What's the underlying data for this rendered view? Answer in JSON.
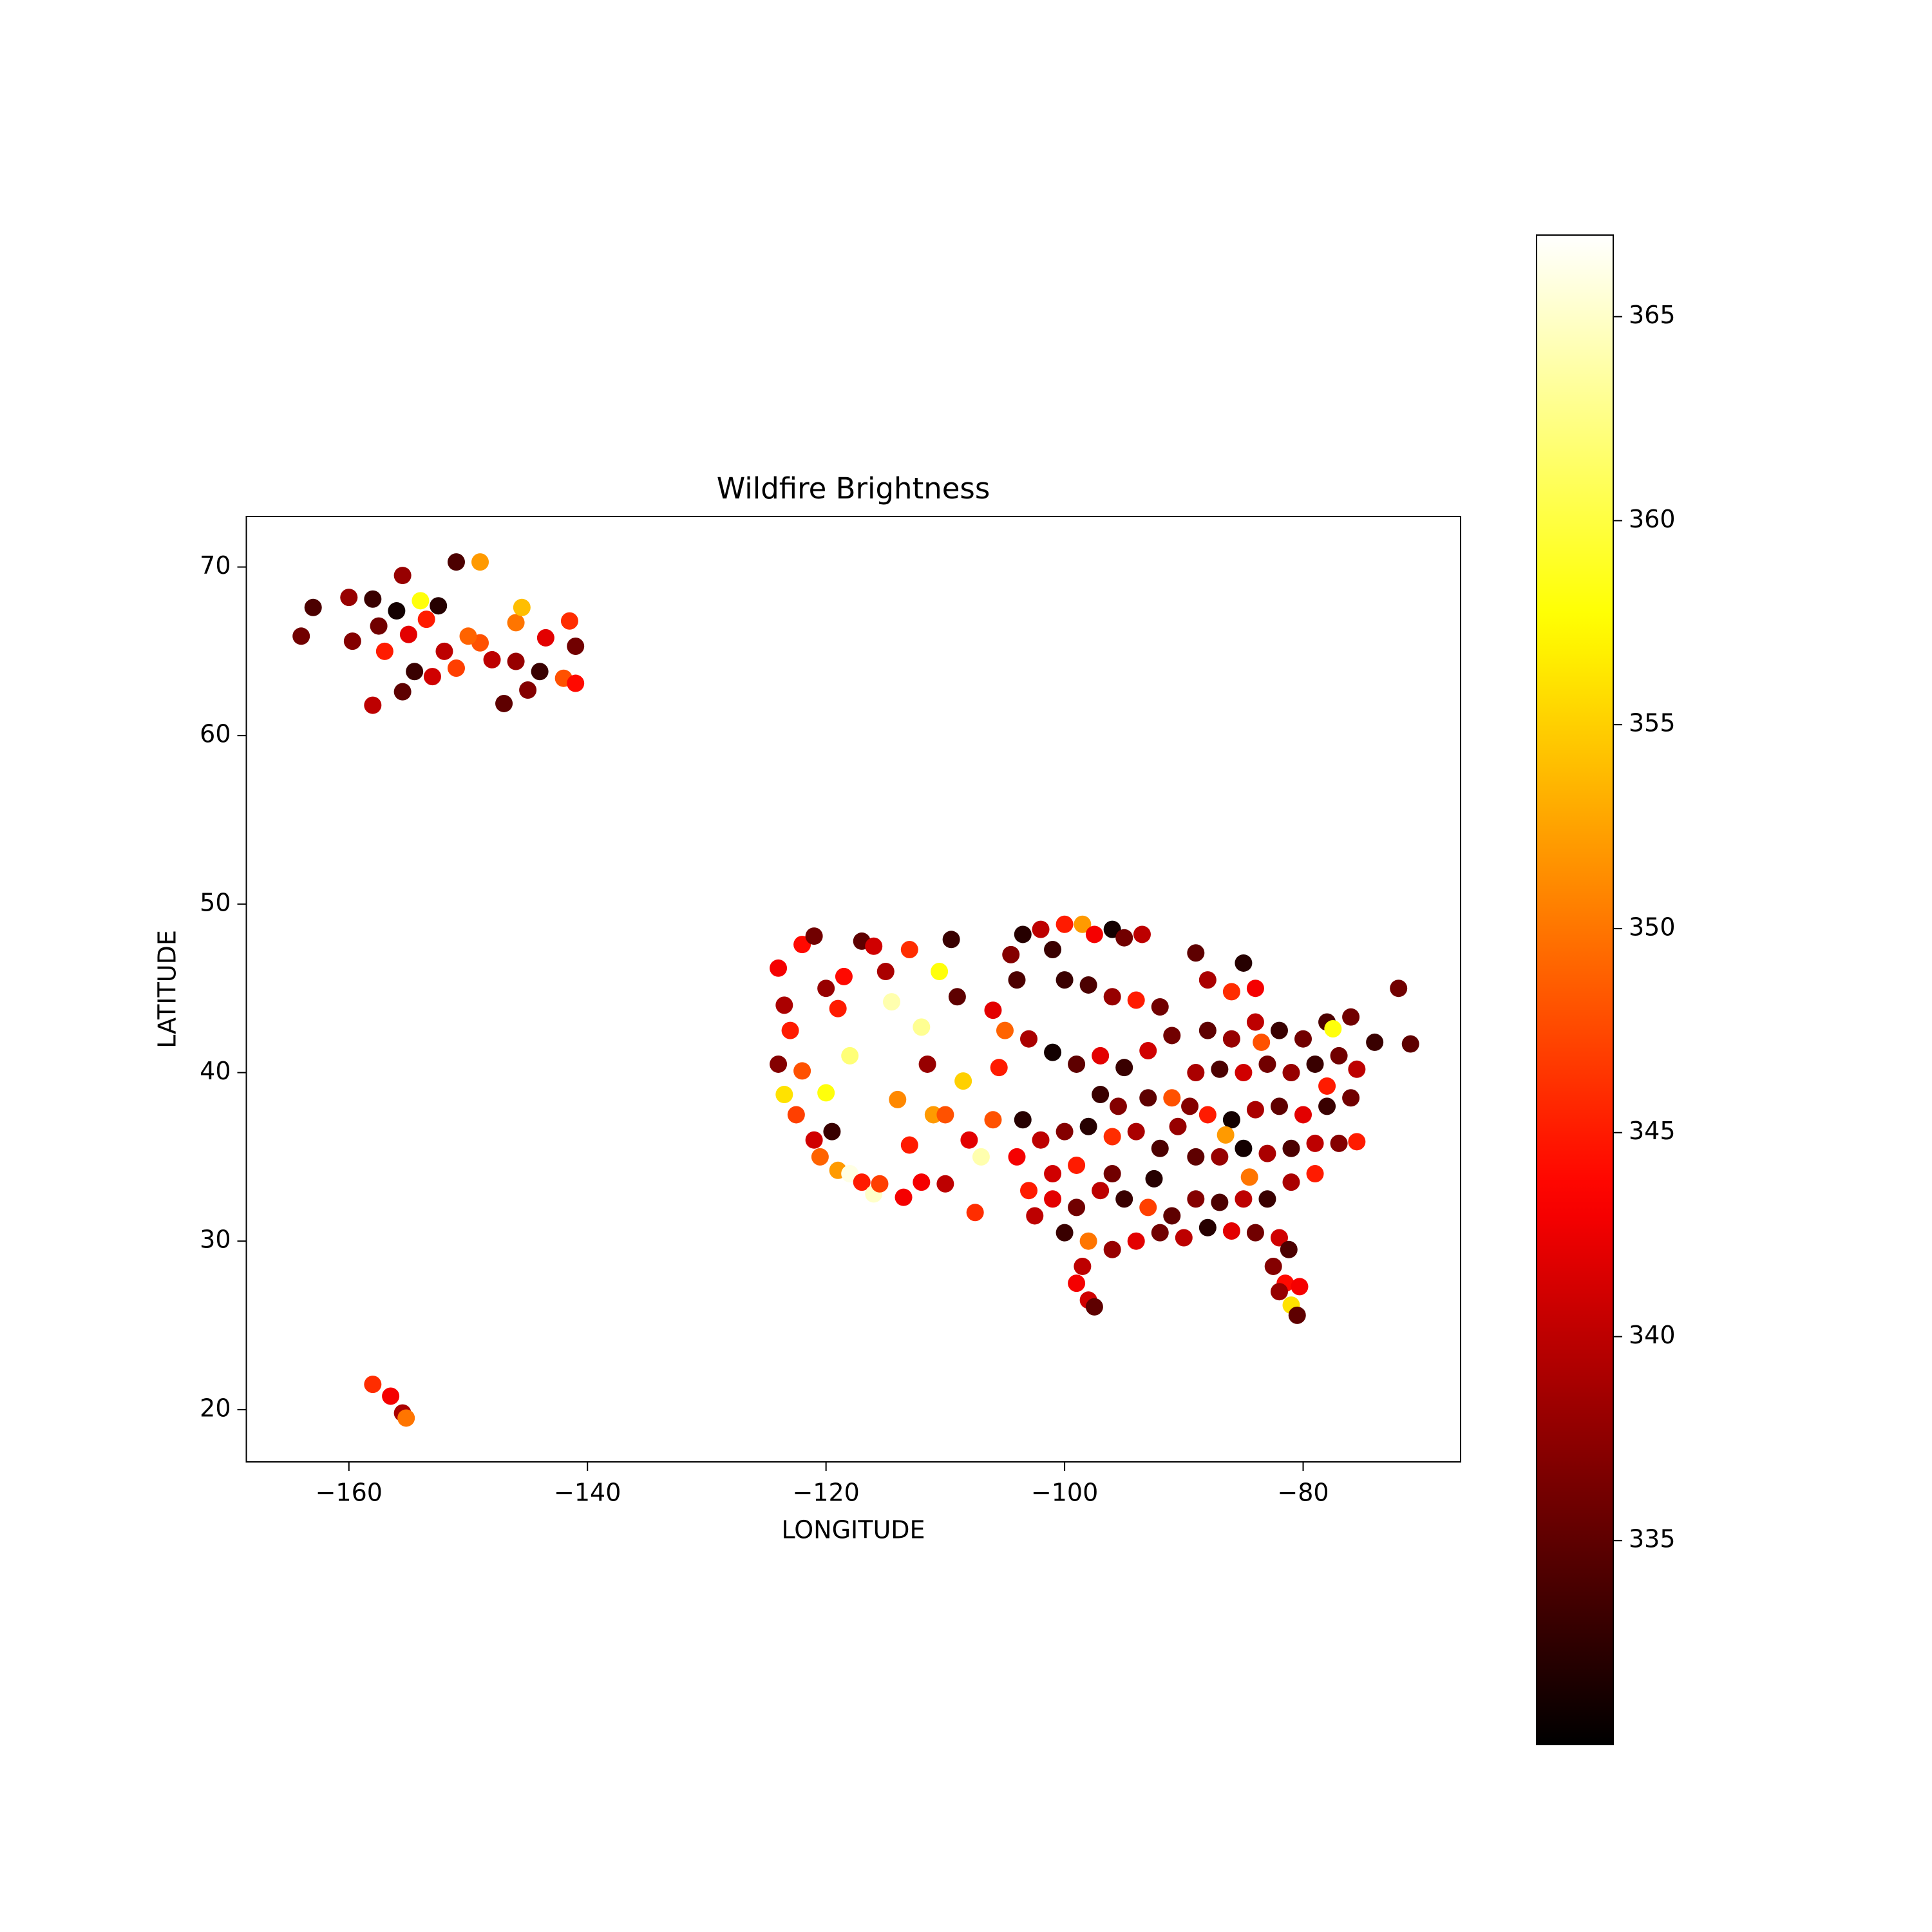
{
  "chart_data": {
    "type": "scatter",
    "title": "Wildfire Brightness",
    "x_label": "LONGITUDE",
    "y_label": "LATITUDE",
    "xlim": [
      -168.6,
      -66.8
    ],
    "ylim": [
      16.9,
      73.0
    ],
    "xticks": [
      {
        "value": -160,
        "label": "−160"
      },
      {
        "value": -140,
        "label": "−140"
      },
      {
        "value": -120,
        "label": "−120"
      },
      {
        "value": -100,
        "label": "−100"
      },
      {
        "value": -80,
        "label": "−80"
      }
    ],
    "yticks": [
      20,
      30,
      40,
      50,
      60,
      70
    ],
    "colormap": "hot",
    "clim": [
      330.0,
      367.0
    ],
    "cticks": [
      335,
      340,
      345,
      350,
      355,
      360,
      365
    ],
    "x": [
      -164,
      -163,
      -160,
      -159.7,
      -158,
      -158,
      -157.5,
      -157,
      -156,
      -155.5,
      -155.5,
      -155,
      -154.5,
      -154,
      -153.5,
      -152.5,
      -152,
      -151,
      -151,
      -149,
      -149,
      -148,
      -147,
      -146,
      -145.5,
      -145,
      -144,
      -143.5,
      -142,
      -141.5,
      -141,
      -141,
      -150,
      -146,
      -153,
      -158,
      -156.5,
      -155.5,
      -155.2,
      -124,
      -123.5,
      -123,
      -124,
      -123.5,
      -122.5,
      -121,
      -120.5,
      -119,
      -118,
      -117,
      -116,
      -122,
      -121,
      -120,
      -119,
      -118,
      -117.5,
      -117,
      -116,
      -115,
      -114.5,
      -114,
      -113,
      -112,
      -111.5,
      -111,
      -110.5,
      -110,
      -109.5,
      -109,
      -108.5,
      -108,
      -107.5,
      -107,
      -106,
      -105.5,
      -105,
      -104.5,
      -104,
      -120,
      -119.5,
      -115.5,
      -113.5,
      -122,
      -118.5,
      -112,
      -113,
      -110,
      -106,
      -103.5,
      -102,
      -101,
      -100,
      -98.5,
      -97.5,
      -96,
      -95,
      -93.5,
      -100,
      -98,
      -96,
      -94,
      -92,
      -103,
      -101,
      -99,
      -97,
      -95,
      -93,
      -91,
      -103.5,
      -102,
      -100,
      -98,
      -96,
      -94,
      -92,
      -90.5,
      -103,
      -101,
      -99,
      -97,
      -95,
      -93,
      -91,
      -100,
      -98,
      -96,
      -94,
      -92,
      -99,
      -98,
      -97.5,
      -98.5,
      -101,
      -95.5,
      -93,
      -91,
      -97,
      -99,
      -96,
      -92.5,
      -104,
      -102.5,
      -89,
      -88,
      -86,
      -84,
      -85,
      -88,
      -86,
      -84,
      -82,
      -80,
      -78,
      -76,
      -74,
      -72,
      -71,
      -89,
      -87,
      -85,
      -83,
      -81,
      -79,
      -77,
      -75.5,
      -89.5,
      -88,
      -86,
      -84,
      -82,
      -80,
      -78,
      -76,
      -89,
      -87,
      -85,
      -83,
      -81,
      -79,
      -77,
      -75.5,
      -89,
      -87,
      -85,
      -83,
      -81,
      -79,
      -88,
      -86,
      -84,
      -82,
      -82.5,
      -81.5,
      -81,
      -80.5,
      -81.2,
      -84.5,
      -86.5,
      -77.5,
      -78,
      -83.5,
      -90,
      -82,
      -80.3
    ],
    "y": [
      65.9,
      67.6,
      68.2,
      65.6,
      68.1,
      61.8,
      66.5,
      65,
      67.4,
      69.5,
      62.6,
      66,
      63.8,
      68,
      66.9,
      67.7,
      65,
      70.3,
      64,
      70.3,
      65.5,
      64.5,
      61.9,
      66.7,
      67.6,
      62.7,
      63.8,
      65.8,
      63.4,
      66.8,
      65.3,
      63.1,
      65.9,
      64.4,
      63.5,
      21.5,
      20.8,
      19.8,
      19.5,
      46.2,
      44,
      42.5,
      40.5,
      38.7,
      37.5,
      36,
      35,
      34.2,
      34,
      33.5,
      32.8,
      47.6,
      48.1,
      45,
      43.8,
      41,
      43.8,
      47.8,
      47.5,
      46,
      44.2,
      38.4,
      35.7,
      42.7,
      40.5,
      37.5,
      46,
      33.4,
      47.9,
      44.5,
      39.5,
      36,
      31.7,
      35,
      37.2,
      40.3,
      42.5,
      47,
      45.5,
      38.8,
      36.5,
      33.4,
      32.6,
      40.1,
      45.7,
      33.5,
      47.3,
      37.5,
      43.7,
      48.2,
      48.5,
      47.3,
      48.8,
      48.8,
      48.2,
      48.5,
      48,
      48.2,
      45.5,
      45.2,
      44.5,
      44.3,
      43.9,
      42,
      41.2,
      40.5,
      41,
      40.3,
      41.3,
      42.2,
      37.2,
      36,
      36.5,
      36.8,
      36.2,
      36.5,
      35.5,
      36.8,
      33,
      32.5,
      32,
      33,
      32.5,
      32,
      31.5,
      30.5,
      30,
      29.5,
      30,
      30.5,
      27.5,
      26.5,
      26.1,
      28.5,
      34,
      38,
      38.5,
      38.5,
      38.7,
      34.5,
      34,
      33.7,
      35,
      31.5,
      47.1,
      45.5,
      44.8,
      45,
      46.5,
      42.5,
      42,
      43,
      42.5,
      42,
      43,
      43.3,
      41.8,
      45,
      41.7,
      40,
      40.2,
      40,
      40.5,
      40,
      40.5,
      41,
      40.2,
      38,
      37.5,
      37.2,
      37.8,
      38,
      37.5,
      38,
      38.5,
      35,
      35,
      35.5,
      35.2,
      35.5,
      35.8,
      35.8,
      35.9,
      32.5,
      32.3,
      32.5,
      32.5,
      33.5,
      34,
      30.8,
      30.6,
      30.5,
      30.2,
      28.5,
      27.5,
      26.2,
      25.6,
      29.5,
      33.8,
      36.3,
      42.6,
      39.2,
      41.8,
      30.2,
      27,
      27.3
    ],
    "values": [
      336,
      334,
      338,
      337,
      333,
      340,
      336,
      345,
      331,
      338,
      335,
      342,
      333,
      358,
      345,
      332,
      340,
      334,
      347,
      352,
      348,
      340,
      335,
      350,
      354,
      337,
      333,
      342,
      348,
      346,
      336,
      344,
      349,
      338,
      341,
      346,
      343,
      339,
      350,
      343,
      339,
      345,
      337,
      356,
      347,
      341,
      349,
      352,
      366,
      345,
      365,
      344,
      336,
      338,
      345,
      362,
      367,
      335,
      341,
      339,
      364,
      351,
      345,
      363,
      338,
      352,
      358,
      340,
      333,
      335,
      355,
      342,
      346,
      364,
      348,
      345,
      349,
      337,
      334,
      358,
      333,
      347,
      343,
      348,
      344,
      343,
      346,
      348,
      342,
      332,
      340,
      333,
      345,
      352,
      343,
      331,
      336,
      340,
      333,
      334,
      338,
      345,
      336,
      339,
      331,
      335,
      342,
      333,
      341,
      336,
      332,
      340,
      337,
      332,
      346,
      339,
      334,
      338,
      345,
      342,
      336,
      340,
      333,
      347,
      335,
      333,
      350,
      338,
      342,
      336,
      343,
      341,
      335,
      340,
      341,
      337,
      335,
      348,
      333,
      345,
      336,
      332,
      343,
      340,
      335,
      339,
      346,
      343,
      332,
      335,
      338,
      340,
      333,
      336,
      334,
      336,
      333,
      336,
      335,
      339,
      334,
      341,
      336,
      338,
      333,
      336,
      340,
      337,
      345,
      331,
      339,
      335,
      342,
      333,
      336,
      335,
      338,
      331,
      339,
      334,
      340,
      337,
      345,
      337,
      334,
      340,
      333,
      339,
      345,
      332,
      342,
      336,
      341,
      337,
      344,
      356,
      335,
      334,
      350,
      352,
      358,
      345,
      348,
      340,
      338,
      343
    ]
  }
}
